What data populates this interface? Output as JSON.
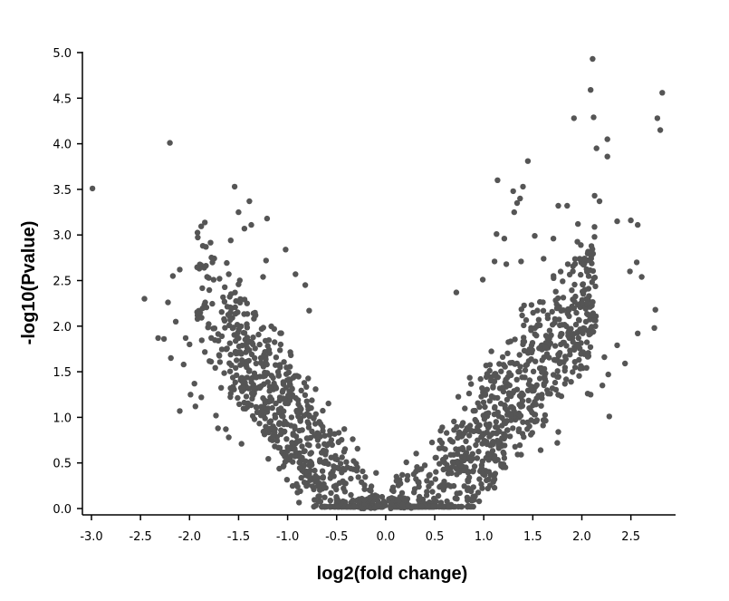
{
  "chart_data": {
    "type": "scatter",
    "title": "",
    "xlabel": "log2(fold change)",
    "ylabel": "-log10(Pvalue)",
    "xlim": [
      -3.05,
      2.95
    ],
    "ylim": [
      0.0,
      5.0
    ],
    "x_ticks": [
      "-3.0",
      "-2.5",
      "-2.0",
      "-1.5",
      "-1.0",
      "-0.5",
      "0.0",
      "0.5",
      "1.0",
      "1.5",
      "2.0",
      "2.5"
    ],
    "y_ticks": [
      "0.0",
      "0.5",
      "1.0",
      "1.5",
      "2.0",
      "2.5",
      "3.0",
      "3.5",
      "4.0",
      "4.5",
      "5.0"
    ],
    "grid": false,
    "point_color": "#555555",
    "series": [
      {
        "points": [
          [
            -2.99,
            3.51
          ],
          [
            -2.2,
            4.01
          ],
          [
            -1.54,
            3.53
          ],
          [
            -1.39,
            3.37
          ],
          [
            -1.5,
            3.25
          ],
          [
            -1.44,
            3.07
          ],
          [
            -1.21,
            3.18
          ],
          [
            -1.58,
            2.94
          ],
          [
            -1.37,
            3.11
          ],
          [
            -1.02,
            2.84
          ],
          [
            -2.46,
            2.3
          ],
          [
            -2.32,
            1.87
          ],
          [
            -2.1,
            2.62
          ],
          [
            -2.22,
            2.26
          ],
          [
            -2.17,
            2.55
          ],
          [
            -2.04,
            1.87
          ],
          [
            -2.1,
            1.07
          ],
          [
            -1.9,
            2.63
          ],
          [
            -1.85,
            2.64
          ],
          [
            -2.06,
            1.58
          ],
          [
            -1.99,
            1.25
          ],
          [
            -2.0,
            1.8
          ],
          [
            -2.26,
            1.86
          ],
          [
            -1.84,
            2.26
          ],
          [
            -1.78,
            1.61
          ],
          [
            -1.67,
            1.89
          ],
          [
            -1.6,
            2.57
          ],
          [
            -1.71,
            0.88
          ],
          [
            -1.25,
            2.54
          ],
          [
            -0.92,
            2.57
          ],
          [
            -1.22,
            2.72
          ],
          [
            -0.82,
            2.45
          ],
          [
            -0.78,
            2.17
          ],
          [
            -2.14,
            2.05
          ],
          [
            -2.19,
            1.65
          ],
          [
            -1.95,
            1.37
          ],
          [
            -1.94,
            1.12
          ],
          [
            -1.73,
            1.02
          ],
          [
            -1.88,
            1.22
          ],
          [
            -1.6,
            0.78
          ],
          [
            -1.47,
            0.71
          ],
          [
            -1.63,
            0.87
          ],
          [
            1.14,
            3.6
          ],
          [
            1.3,
            3.48
          ],
          [
            1.34,
            3.35
          ],
          [
            1.4,
            3.53
          ],
          [
            1.45,
            3.81
          ],
          [
            1.37,
            3.4
          ],
          [
            1.31,
            3.25
          ],
          [
            1.13,
            3.01
          ],
          [
            1.21,
            2.96
          ],
          [
            1.52,
            2.99
          ],
          [
            1.76,
            3.32
          ],
          [
            1.85,
            3.32
          ],
          [
            2.11,
            4.93
          ],
          [
            2.09,
            4.59
          ],
          [
            2.12,
            4.29
          ],
          [
            1.92,
            4.28
          ],
          [
            2.26,
            4.05
          ],
          [
            2.15,
            3.95
          ],
          [
            2.26,
            3.86
          ],
          [
            2.82,
            4.56
          ],
          [
            2.77,
            4.28
          ],
          [
            2.8,
            4.15
          ],
          [
            2.13,
            3.43
          ],
          [
            2.18,
            3.37
          ],
          [
            2.36,
            3.15
          ],
          [
            2.5,
            3.16
          ],
          [
            2.57,
            3.11
          ],
          [
            2.49,
            2.6
          ],
          [
            2.56,
            2.7
          ],
          [
            2.61,
            2.54
          ],
          [
            2.75,
            2.18
          ],
          [
            2.74,
            1.98
          ],
          [
            2.57,
            1.92
          ],
          [
            2.36,
            1.79
          ],
          [
            2.23,
            1.66
          ],
          [
            2.06,
            1.26
          ],
          [
            2.04,
            2.19
          ],
          [
            0.72,
            2.37
          ],
          [
            0.99,
            2.51
          ],
          [
            1.11,
            2.71
          ],
          [
            1.23,
            2.68
          ],
          [
            1.38,
            2.71
          ],
          [
            1.61,
            2.74
          ],
          [
            1.71,
            2.96
          ],
          [
            1.96,
            3.12
          ],
          [
            1.99,
            2.89
          ],
          [
            1.89,
            1.92
          ],
          [
            1.97,
            1.63
          ],
          [
            2.01,
            1.54
          ],
          [
            2.09,
            1.25
          ],
          [
            2.21,
            1.35
          ],
          [
            2.27,
            1.47
          ],
          [
            2.44,
            1.59
          ],
          [
            2.28,
            1.01
          ],
          [
            1.89,
            1.39
          ],
          [
            1.76,
            0.84
          ],
          [
            1.75,
            0.72
          ],
          [
            1.58,
            0.64
          ],
          [
            1.38,
            0.59
          ],
          [
            1.11,
            0.32
          ],
          [
            0.98,
            0.44
          ],
          [
            0.11,
            0.35
          ],
          [
            0.08,
            0.19
          ]
        ]
      }
    ]
  }
}
